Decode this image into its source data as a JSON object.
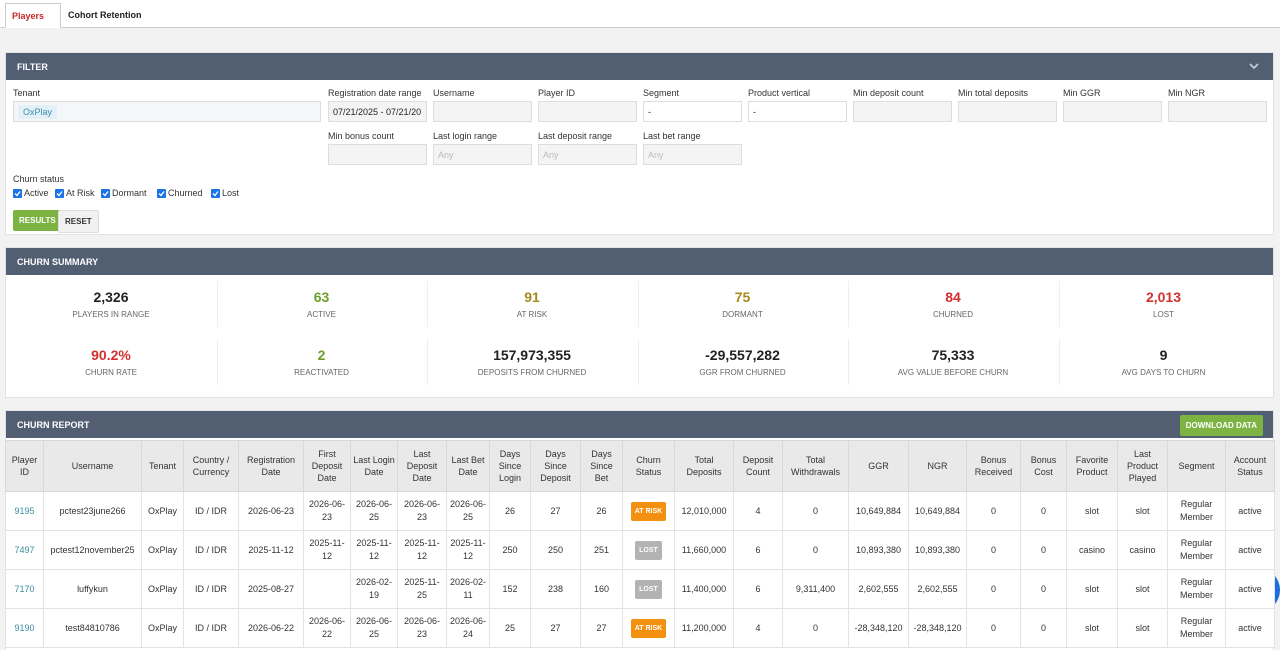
{
  "tabs": [
    "Players",
    "Cohort Retention"
  ],
  "filter": {
    "title": "FILTER",
    "fields": [
      {
        "label": "Tenant",
        "value": "OxPlay"
      },
      {
        "label": "Registration date range",
        "value": "07/21/2025 - 07/21/20"
      },
      {
        "label": "Username"
      },
      {
        "label": "Player ID"
      },
      {
        "label": "Segment",
        "value": "-"
      },
      {
        "label": "Product vertical",
        "value": "-"
      },
      {
        "label": "Min deposit count"
      },
      {
        "label": "Min total deposits"
      },
      {
        "label": "Min GGR"
      },
      {
        "label": "Min NGR"
      },
      {
        "label": "Min bonus count"
      },
      {
        "label": "Last login range",
        "placeholder": "Any"
      },
      {
        "label": "Last deposit range",
        "placeholder": "Any"
      },
      {
        "label": "Last bet range",
        "placeholder": "Any"
      }
    ],
    "churn_status": {
      "label": "Churn status",
      "options": [
        "Active",
        "At Risk",
        "Dormant",
        "Churned",
        "Lost"
      ]
    },
    "buttons": [
      "RESULTS",
      "RESET"
    ]
  },
  "summary": {
    "title": "CHURN SUMMARY",
    "cards": [
      {
        "value": "2,326",
        "label": "PLAYERS IN RANGE",
        "color": "#222222"
      },
      {
        "value": "63",
        "label": "ACTIVE",
        "color": "#6f9e2c"
      },
      {
        "value": "91",
        "label": "AT RISK",
        "color": "#a48a1a"
      },
      {
        "value": "75",
        "label": "DORMANT",
        "color": "#a48a1a"
      },
      {
        "value": "84",
        "label": "CHURNED",
        "color": "#d32f2f"
      },
      {
        "value": "2,013",
        "label": "LOST",
        "color": "#d32f2f"
      },
      {
        "value": "90.2%",
        "label": "CHURN RATE",
        "color": "#d32f2f"
      },
      {
        "value": "2",
        "label": "REACTIVATED",
        "color": "#6f9e2c"
      },
      {
        "value": "157,973,355",
        "label": "DEPOSITS FROM CHURNED",
        "color": "#222222"
      },
      {
        "value": "-29,557,282",
        "label": "GGR FROM CHURNED",
        "color": "#222222"
      },
      {
        "value": "75,333",
        "label": "AVG VALUE BEFORE CHURN",
        "color": "#222222"
      },
      {
        "value": "9",
        "label": "AVG DAYS TO CHURN",
        "color": "#222222"
      }
    ]
  },
  "report": {
    "title": "CHURN REPORT",
    "download": "DOWNLOAD DATA",
    "columns": [
      "Player ID",
      "Username",
      "Tenant",
      "Country / Currency",
      "Registration Date",
      "First Deposit Date",
      "Last Login Date",
      "Last Deposit Date",
      "Last Bet Date",
      "Days Since Login",
      "Days Since Deposit",
      "Days Since Bet",
      "Churn Status",
      "Total Deposits",
      "Deposit Count",
      "Total Withdrawals",
      "GGR",
      "NGR",
      "Bonus Received",
      "Bonus Cost",
      "Favorite Product",
      "Last Product Played",
      "Segment",
      "Account Status"
    ],
    "rows": [
      [
        "9195",
        "pctest23june266",
        "OxPlay",
        "ID / IDR",
        "2026-06-23",
        "2026-06-23",
        "2026-06-25",
        "2026-06-23",
        "2026-06-25",
        "26",
        "27",
        "26",
        {
          "text": "AT RISK",
          "color": "#f39010"
        },
        "12,010,000",
        "4",
        "0",
        "10,649,884",
        "10,649,884",
        "0",
        "0",
        "slot",
        "slot",
        "Regular Member",
        "active"
      ],
      [
        "7497",
        "pctest12november25",
        "OxPlay",
        "ID / IDR",
        "2025-11-12",
        "2025-11-12",
        "2025-11-12",
        "2025-11-12",
        "2025-11-12",
        "250",
        "250",
        "251",
        {
          "text": "LOST",
          "color": "#b3b3b3"
        },
        "11,660,000",
        "6",
        "0",
        "10,893,380",
        "10,893,380",
        "0",
        "0",
        "casino",
        "casino",
        "Regular Member",
        "active"
      ],
      [
        "7170",
        "luffykun",
        "OxPlay",
        "ID / IDR",
        "2025-08-27",
        null,
        "2026-02-19",
        "2025-11-25",
        "2026-02-11",
        "152",
        "238",
        "160",
        {
          "text": "LOST",
          "color": "#b3b3b3"
        },
        "11,400,000",
        "6",
        "9,311,400",
        "2,602,555",
        "2,602,555",
        "0",
        "0",
        "slot",
        "slot",
        "Regular Member",
        "active"
      ],
      [
        "9190",
        "test84810786",
        "OxPlay",
        "ID / IDR",
        "2026-06-22",
        "2026-06-22",
        "2026-06-25",
        "2026-06-23",
        "2026-06-24",
        "25",
        "27",
        "27",
        {
          "text": "AT RISK",
          "color": "#f39010"
        },
        "11,200,000",
        "4",
        "0",
        "-28,348,120",
        "-28,348,120",
        "0",
        "0",
        "slot",
        "slot",
        "Regular Member",
        "active"
      ]
    ]
  }
}
